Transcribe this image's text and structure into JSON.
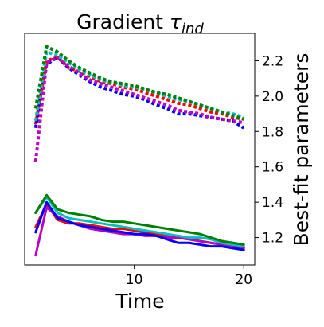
{
  "chart_data": {
    "type": "line",
    "title_main": "Gradient ",
    "title_symbol": "τ",
    "title_subscript": "ind",
    "xlabel": "Time",
    "ylabel": "Best-fit parameters",
    "xlim": [
      0.0,
      21.0
    ],
    "ylim": [
      1.045,
      2.355
    ],
    "xticks": [
      10,
      20
    ],
    "xtick_labels": [
      "10",
      "20"
    ],
    "yticks": [
      1.2,
      1.4,
      1.6,
      1.8,
      2.0,
      2.2
    ],
    "ytick_labels": [
      "1.2",
      "1.4",
      "1.6",
      "1.8",
      "2.0",
      "2.2"
    ],
    "grid": false,
    "legend": "none",
    "y_axis_side": "right",
    "x": [
      1,
      2,
      3,
      4,
      5,
      6,
      7,
      8,
      9,
      10,
      11,
      12,
      13,
      14,
      15,
      16,
      17,
      18,
      19,
      20
    ],
    "series": [
      {
        "style": "dotted",
        "color": "#ff0000",
        "values": [
          1.84,
          2.2,
          2.22,
          2.16,
          2.14,
          2.11,
          2.08,
          2.07,
          2.05,
          2.04,
          2.02,
          2.0,
          1.98,
          1.96,
          1.95,
          1.93,
          1.91,
          1.9,
          1.88,
          1.87
        ]
      },
      {
        "style": "dotted",
        "color": "#0000ff",
        "values": [
          1.82,
          2.18,
          2.22,
          2.16,
          2.12,
          2.08,
          2.05,
          2.03,
          2.01,
          2.0,
          1.98,
          1.95,
          1.93,
          1.9,
          1.9,
          1.89,
          1.88,
          1.87,
          1.86,
          1.82
        ]
      },
      {
        "style": "dotted",
        "color": "#c000c0",
        "values": [
          1.63,
          2.19,
          2.22,
          2.17,
          2.13,
          2.09,
          2.07,
          2.05,
          2.03,
          2.01,
          1.99,
          1.97,
          1.95,
          1.92,
          1.91,
          1.9,
          1.88,
          1.87,
          1.86,
          1.85
        ]
      },
      {
        "style": "dotted",
        "color": "#00c0c0",
        "values": [
          1.86,
          2.25,
          2.23,
          2.19,
          2.15,
          2.12,
          2.09,
          2.08,
          2.06,
          2.05,
          2.04,
          2.02,
          2.0,
          1.98,
          1.97,
          1.95,
          1.93,
          1.91,
          1.9,
          1.88
        ]
      },
      {
        "style": "dotted",
        "color": "#008000",
        "values": [
          1.93,
          2.28,
          2.25,
          2.2,
          2.16,
          2.13,
          2.1,
          2.08,
          2.07,
          2.06,
          2.04,
          2.02,
          2.01,
          1.99,
          1.97,
          1.95,
          1.93,
          1.91,
          1.89,
          1.87
        ]
      },
      {
        "style": "solid",
        "color": "#ff0000",
        "values": [
          1.26,
          1.39,
          1.3,
          1.28,
          1.28,
          1.27,
          1.26,
          1.25,
          1.25,
          1.24,
          1.23,
          1.22,
          1.21,
          1.2,
          1.19,
          1.18,
          1.17,
          1.16,
          1.15,
          1.14
        ]
      },
      {
        "style": "solid",
        "color": "#c000c0",
        "values": [
          1.1,
          1.37,
          1.32,
          1.29,
          1.27,
          1.25,
          1.24,
          1.23,
          1.22,
          1.22,
          1.21,
          1.21,
          1.2,
          1.2,
          1.19,
          1.18,
          1.17,
          1.16,
          1.15,
          1.14
        ]
      },
      {
        "style": "solid",
        "color": "#0000ff",
        "values": [
          1.23,
          1.4,
          1.31,
          1.29,
          1.27,
          1.26,
          1.25,
          1.24,
          1.23,
          1.22,
          1.22,
          1.21,
          1.19,
          1.17,
          1.17,
          1.16,
          1.15,
          1.15,
          1.14,
          1.13
        ]
      },
      {
        "style": "solid",
        "color": "#00c0c0",
        "values": [
          1.34,
          1.43,
          1.34,
          1.31,
          1.3,
          1.29,
          1.28,
          1.27,
          1.26,
          1.25,
          1.24,
          1.23,
          1.22,
          1.21,
          1.2,
          1.2,
          1.19,
          1.17,
          1.16,
          1.15
        ]
      },
      {
        "style": "solid",
        "color": "#008000",
        "values": [
          1.34,
          1.44,
          1.36,
          1.34,
          1.33,
          1.32,
          1.3,
          1.29,
          1.29,
          1.28,
          1.27,
          1.26,
          1.25,
          1.24,
          1.23,
          1.22,
          1.2,
          1.18,
          1.17,
          1.16
        ]
      }
    ]
  }
}
